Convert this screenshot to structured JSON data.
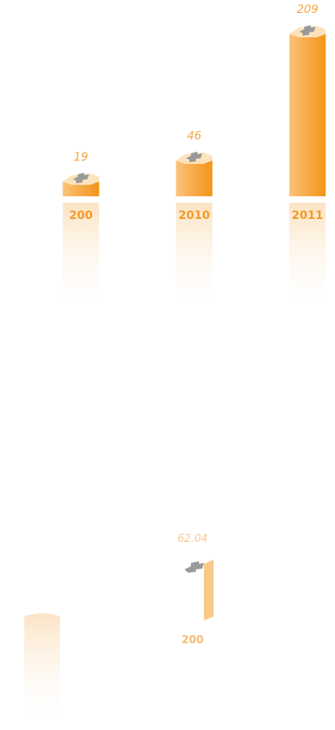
{
  "chart_data": [
    {
      "type": "bar",
      "categories": [
        "200",
        "2010",
        "2011"
      ],
      "values": [
        19,
        46,
        209
      ],
      "color": "#f7a030"
    },
    {
      "type": "bar",
      "categories": [
        "200"
      ],
      "values": [
        62.04
      ],
      "color": "#f9c98a"
    }
  ]
}
